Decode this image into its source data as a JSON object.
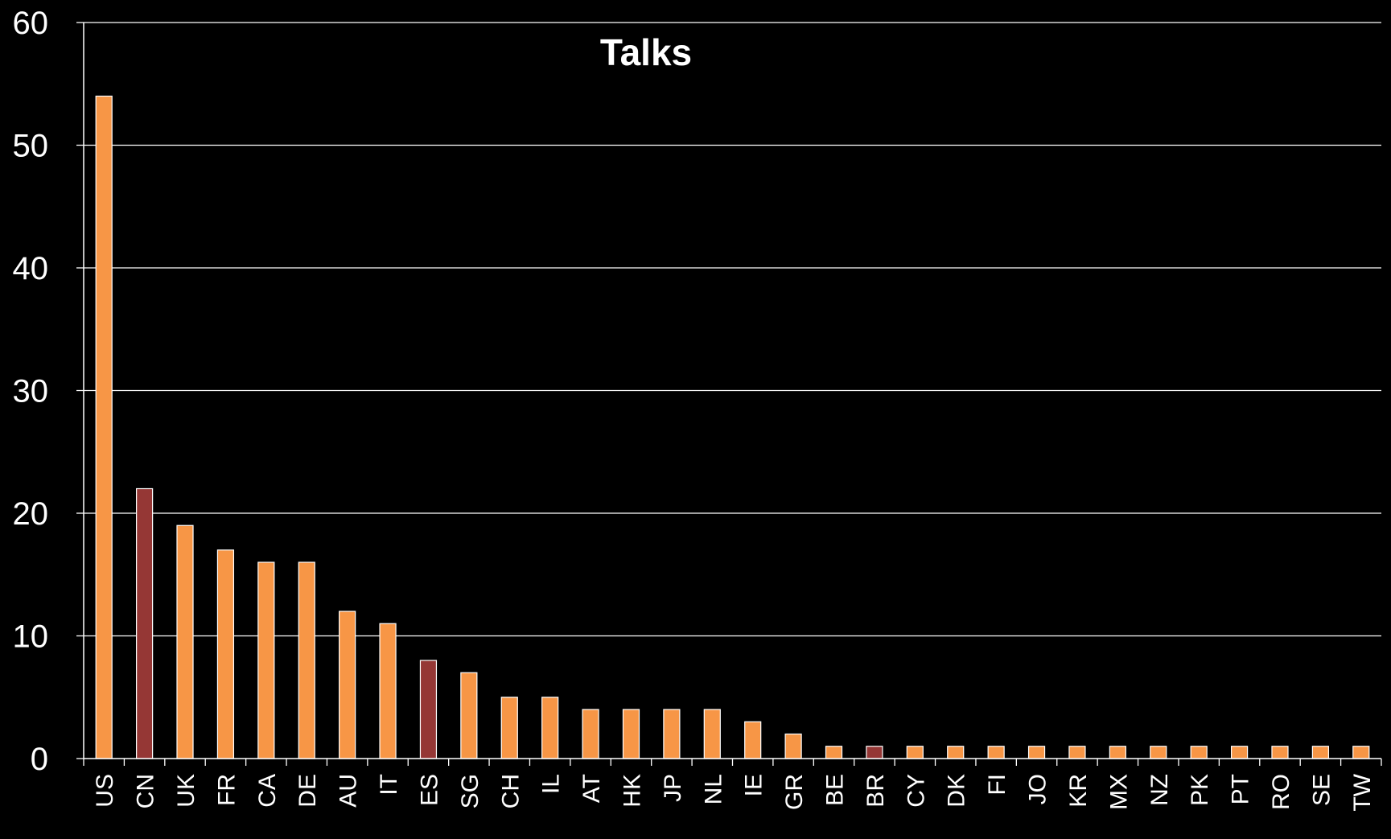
{
  "chart_data": {
    "type": "bar",
    "title": "Talks",
    "xlabel": "",
    "ylabel": "",
    "ylim": [
      0,
      60
    ],
    "yticks": [
      0,
      10,
      20,
      30,
      40,
      50,
      60
    ],
    "grid": true,
    "legend": "none",
    "categories": [
      "US",
      "CN",
      "UK",
      "FR",
      "CA",
      "DE",
      "AU",
      "IT",
      "ES",
      "SG",
      "CH",
      "IL",
      "AT",
      "HK",
      "JP",
      "NL",
      "IE",
      "GR",
      "BE",
      "BR",
      "CY",
      "DK",
      "FI",
      "JO",
      "KR",
      "MX",
      "NZ",
      "PK",
      "PT",
      "RO",
      "SE",
      "TW"
    ],
    "values": [
      54,
      22,
      19,
      17,
      16,
      16,
      12,
      11,
      8,
      7,
      5,
      5,
      4,
      4,
      4,
      4,
      3,
      2,
      1,
      1,
      1,
      1,
      1,
      1,
      1,
      1,
      1,
      1,
      1,
      1,
      1,
      1
    ],
    "highlighted": [
      "CN",
      "ES",
      "BR"
    ]
  },
  "colors": {
    "background": "#000000",
    "bar": "#F79646",
    "bar_highlight": "#953735",
    "bar_outline": "#FFFFFF",
    "grid": "#FFFFFF",
    "axis": "#FFFFFF",
    "text": "#FFFFFF"
  }
}
